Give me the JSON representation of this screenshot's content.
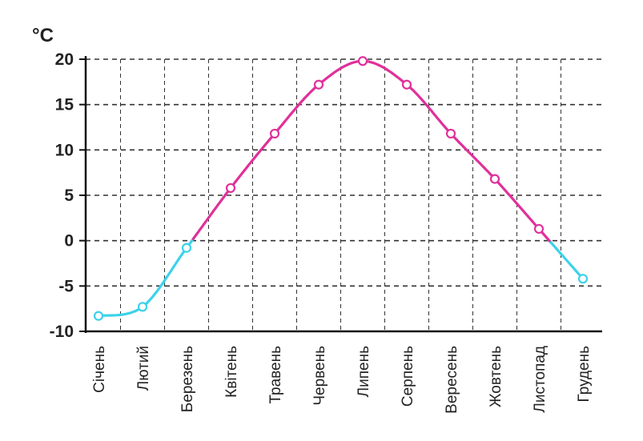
{
  "chart_data": {
    "type": "line",
    "y_unit_label": "°C",
    "categories": [
      "Січень",
      "Лютий",
      "Березень",
      "Квітень",
      "Травень",
      "Червень",
      "Липень",
      "Серпень",
      "Вересень",
      "Жовтень",
      "Листопад",
      "Грудень"
    ],
    "values": [
      -8.3,
      -7.3,
      -0.8,
      5.8,
      11.8,
      17.2,
      19.8,
      17.2,
      11.8,
      6.8,
      1.3,
      -4.2
    ],
    "ylim": [
      -10,
      20
    ],
    "y_ticks": [
      "20",
      "15",
      "10",
      "5",
      "0",
      "-5",
      "-10"
    ],
    "grid": true,
    "colors": {
      "above_zero": "#e0309a",
      "below_zero": "#3cd2ea",
      "grid": "#333333",
      "axis": "#111111"
    }
  }
}
